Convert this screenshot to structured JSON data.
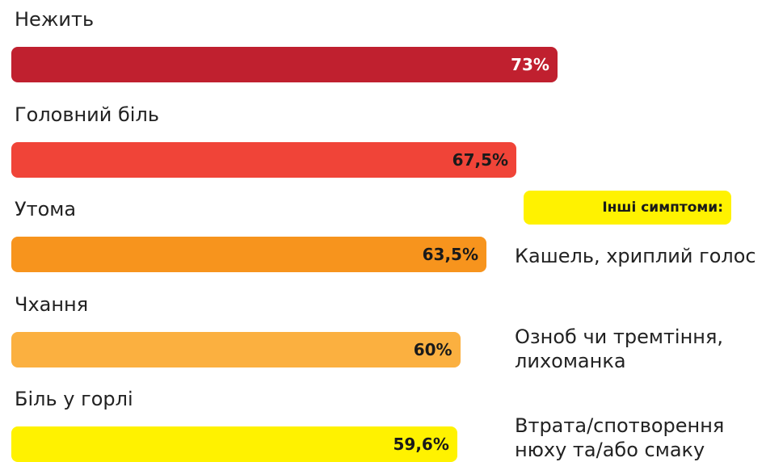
{
  "chart_data": {
    "type": "bar",
    "categories": [
      "Нежить",
      "Головний біль",
      "Утома",
      "Чхання",
      "Біль у горлі"
    ],
    "values": [
      73,
      67.5,
      63.5,
      60,
      59.6
    ],
    "value_labels": [
      "73%",
      "67,5%",
      "63,5%",
      "60%",
      "59,6%"
    ],
    "colors": [
      "#c0202f",
      "#f04438",
      "#f7941d",
      "#fbb040",
      "#fff200"
    ],
    "label_colors": [
      "#ffffff",
      "#1a1a1a",
      "#1a1a1a",
      "#1a1a1a",
      "#1a1a1a"
    ],
    "side_title": "Інші симптоми:",
    "side_items": [
      "Кашель, хриплий голос",
      "Озноб чи тремтіння, лихоманка",
      "Втрата/спотворення нюху та/або смаку"
    ]
  }
}
